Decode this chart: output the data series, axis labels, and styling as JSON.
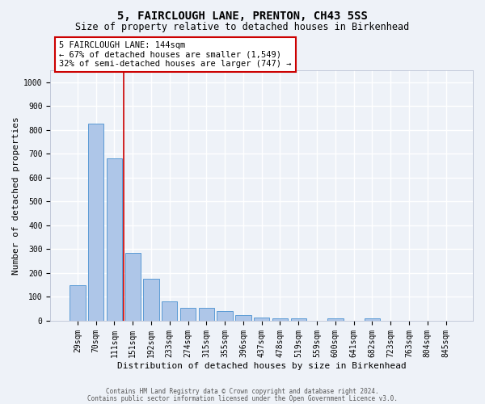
{
  "title1": "5, FAIRCLOUGH LANE, PRENTON, CH43 5SS",
  "title2": "Size of property relative to detached houses in Birkenhead",
  "xlabel": "Distribution of detached houses by size in Birkenhead",
  "ylabel": "Number of detached properties",
  "categories": [
    "29sqm",
    "70sqm",
    "111sqm",
    "151sqm",
    "192sqm",
    "233sqm",
    "274sqm",
    "315sqm",
    "355sqm",
    "396sqm",
    "437sqm",
    "478sqm",
    "519sqm",
    "559sqm",
    "600sqm",
    "641sqm",
    "682sqm",
    "723sqm",
    "763sqm",
    "804sqm",
    "845sqm"
  ],
  "values": [
    150,
    825,
    680,
    283,
    175,
    80,
    55,
    55,
    42,
    25,
    12,
    10,
    10,
    0,
    10,
    0,
    10,
    0,
    0,
    0,
    0
  ],
  "bar_color": "#aec6e8",
  "bar_edge_color": "#5b9bd5",
  "vline_x": 2.5,
  "vline_color": "#cc0000",
  "annotation_text": "5 FAIRCLOUGH LANE: 144sqm\n← 67% of detached houses are smaller (1,549)\n32% of semi-detached houses are larger (747) →",
  "annotation_box_color": "#ffffff",
  "annotation_box_edge": "#cc0000",
  "ylim": [
    0,
    1050
  ],
  "yticks": [
    0,
    100,
    200,
    300,
    400,
    500,
    600,
    700,
    800,
    900,
    1000
  ],
  "footer1": "Contains HM Land Registry data © Crown copyright and database right 2024.",
  "footer2": "Contains public sector information licensed under the Open Government Licence v3.0.",
  "background_color": "#eef2f8",
  "grid_color": "#ffffff",
  "title1_fontsize": 10,
  "title2_fontsize": 8.5,
  "xlabel_fontsize": 8,
  "ylabel_fontsize": 8,
  "tick_fontsize": 7,
  "annot_fontsize": 7.5
}
